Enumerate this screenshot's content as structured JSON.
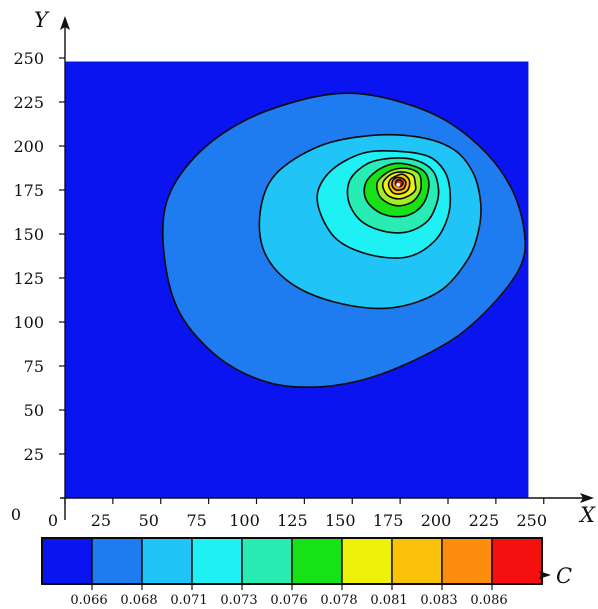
{
  "chart_data": {
    "type": "contour",
    "xlabel": "X",
    "ylabel": "Y",
    "colorbar_label": "C",
    "xlim": [
      0,
      250
    ],
    "ylim": [
      0,
      250
    ],
    "origin_label": "0",
    "x_ticks": [
      "0",
      "25",
      "50",
      "75",
      "100",
      "125",
      "150",
      "175",
      "200",
      "225",
      "250"
    ],
    "y_ticks": [
      "25",
      "50",
      "75",
      "100",
      "125",
      "150",
      "175",
      "200",
      "225",
      "250"
    ],
    "domain": {
      "x": [
        0,
        242
      ],
      "y": [
        0,
        248
      ]
    },
    "peak": {
      "x": 174,
      "y": 178
    },
    "colorbar": {
      "colors": [
        "#0a14f0",
        "#1e7cf0",
        "#20c4f6",
        "#1ef0f4",
        "#28ecb4",
        "#16e216",
        "#eef20a",
        "#fbc20a",
        "#fb8c0c",
        "#f51010"
      ],
      "tick_labels": [
        "0.066",
        "0.068",
        "0.071",
        "0.073",
        "0.076",
        "0.078",
        "0.081",
        "0.083",
        "0.086"
      ]
    },
    "contour_bands": [
      {
        "color": "#1e7cf0",
        "path": [
          [
            240,
            150
          ],
          [
            234,
            174
          ],
          [
            220,
            196
          ],
          [
            198,
            215
          ],
          [
            172,
            226
          ],
          [
            148,
            230
          ],
          [
            123,
            226
          ],
          [
            93,
            214
          ],
          [
            68,
            194
          ],
          [
            53,
            168
          ],
          [
            52,
            136
          ],
          [
            60,
            105
          ],
          [
            80,
            80
          ],
          [
            105,
            66
          ],
          [
            130,
            63
          ],
          [
            155,
            67
          ],
          [
            180,
            77
          ],
          [
            205,
            92
          ],
          [
            225,
            112
          ],
          [
            238,
            132
          ]
        ]
      },
      {
        "color": "#20c4f6",
        "path": [
          [
            217,
            168
          ],
          [
            213,
            185
          ],
          [
            203,
            198
          ],
          [
            185,
            205
          ],
          [
            160,
            206
          ],
          [
            133,
            200
          ],
          [
            110,
            184
          ],
          [
            102,
            163
          ],
          [
            104,
            140
          ],
          [
            118,
            122
          ],
          [
            142,
            111
          ],
          [
            170,
            108
          ],
          [
            195,
            117
          ],
          [
            210,
            135
          ],
          [
            216,
            152
          ]
        ]
      },
      {
        "color": "#1ef0f4",
        "path": [
          [
            201,
            175
          ],
          [
            198,
            186
          ],
          [
            190,
            194
          ],
          [
            174,
            197
          ],
          [
            156,
            196
          ],
          [
            140,
            187
          ],
          [
            132,
            174
          ],
          [
            134,
            160
          ],
          [
            143,
            146
          ],
          [
            160,
            138
          ],
          [
            179,
            137
          ],
          [
            193,
            146
          ],
          [
            200,
            160
          ]
        ]
      },
      {
        "color": "#28ecb4",
        "path": [
          [
            195,
            176
          ],
          [
            192,
            186
          ],
          [
            183,
            192
          ],
          [
            170,
            193
          ],
          [
            158,
            190
          ],
          [
            149,
            181
          ],
          [
            148,
            169
          ],
          [
            154,
            158
          ],
          [
            165,
            152
          ],
          [
            178,
            151
          ],
          [
            189,
            157
          ],
          [
            194,
            167
          ]
        ]
      },
      {
        "color": "#16e216",
        "path": [
          [
            190,
            177
          ],
          [
            188,
            185
          ],
          [
            181,
            189
          ],
          [
            172,
            190
          ],
          [
            163,
            186
          ],
          [
            157,
            179
          ],
          [
            157,
            170
          ],
          [
            163,
            163
          ],
          [
            171,
            160
          ],
          [
            180,
            161
          ],
          [
            187,
            167
          ]
        ]
      },
      {
        "color": "#9ef024",
        "path": [
          [
            186,
            178
          ],
          [
            185,
            184
          ],
          [
            180,
            187
          ],
          [
            173,
            187
          ],
          [
            167,
            184
          ],
          [
            163,
            179
          ],
          [
            164,
            172
          ],
          [
            168,
            168
          ],
          [
            174,
            166
          ],
          [
            181,
            168
          ],
          [
            185,
            173
          ]
        ]
      },
      {
        "color": "#eef20a",
        "path": [
          [
            183,
            178
          ],
          [
            182,
            183
          ],
          [
            178,
            185
          ],
          [
            173,
            185
          ],
          [
            169,
            183
          ],
          [
            166,
            179
          ],
          [
            167,
            174
          ],
          [
            170,
            171
          ],
          [
            175,
            170
          ],
          [
            180,
            172
          ],
          [
            183,
            175
          ]
        ]
      },
      {
        "color": "#fbc20a",
        "path": [
          [
            180,
            179
          ],
          [
            179,
            182
          ],
          [
            176,
            184
          ],
          [
            173,
            183
          ],
          [
            170,
            181
          ],
          [
            169,
            178
          ],
          [
            170,
            175
          ],
          [
            172,
            173
          ],
          [
            176,
            173
          ],
          [
            179,
            175
          ]
        ]
      },
      {
        "color": "#fb8c0c",
        "path": [
          [
            178,
            179
          ],
          [
            177,
            181
          ],
          [
            175,
            182
          ],
          [
            173,
            182
          ],
          [
            171,
            180
          ],
          [
            171,
            177
          ],
          [
            173,
            175
          ],
          [
            175,
            175
          ],
          [
            177,
            176
          ]
        ]
      },
      {
        "color": "#f51010",
        "path": [
          [
            176.5,
            179
          ],
          [
            175.5,
            180.5
          ],
          [
            174,
            180.8
          ],
          [
            172.8,
            179.8
          ],
          [
            172.8,
            178
          ],
          [
            174,
            177
          ],
          [
            175.6,
            177.4
          ]
        ]
      }
    ]
  }
}
